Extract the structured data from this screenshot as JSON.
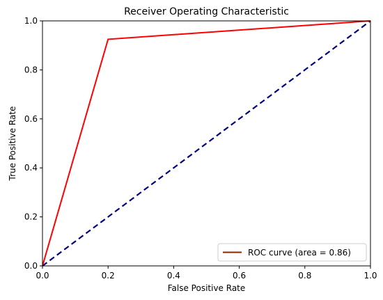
{
  "chart_data": {
    "type": "line",
    "title": "Receiver Operating Characteristic",
    "xlabel": "False Positive Rate",
    "ylabel": "True Positive Rate",
    "xlim": [
      0.0,
      1.0
    ],
    "ylim": [
      0.0,
      1.0
    ],
    "xticks": [
      "0.0",
      "0.2",
      "0.4",
      "0.6",
      "0.8",
      "1.0"
    ],
    "yticks": [
      "0.0",
      "0.2",
      "0.4",
      "0.6",
      "0.8",
      "1.0"
    ],
    "grid": false,
    "legend_position": "lower-right",
    "series": [
      {
        "name": "ROC curve (area = 0.86)",
        "color": "#ff0000",
        "style": "solid",
        "legend_color": "#8b2500",
        "x": [
          0.0,
          0.2,
          1.0
        ],
        "y": [
          0.0,
          0.925,
          1.0
        ]
      },
      {
        "color": "#000080",
        "style": "dashed",
        "x": [
          0.0,
          1.0
        ],
        "y": [
          0.0,
          1.0
        ]
      }
    ]
  }
}
